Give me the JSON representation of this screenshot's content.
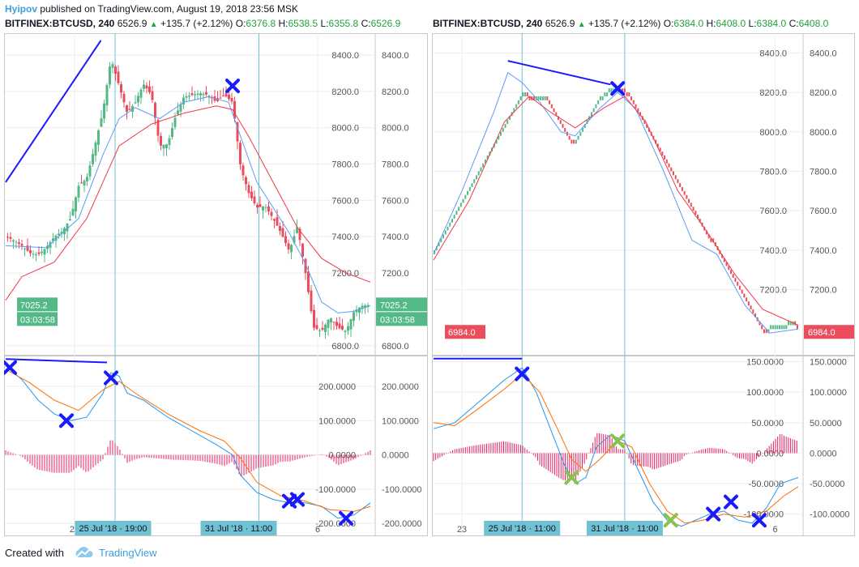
{
  "header": {
    "user": "Hyipov",
    "published": "published on TradingView.com, August 19, 2018 23:56 MSK"
  },
  "footer": {
    "created": "Created with",
    "brand": "TradingView"
  },
  "charts": [
    {
      "symbol": "BITFINEX:BTCUSD, 240",
      "last": "6526.9",
      "change": "+135.7 (+2.12%)",
      "o_label": "O:",
      "o": "6376.8",
      "h_label": "H:",
      "h": "6538.5",
      "l_label": "L:",
      "l": "6355.8",
      "c_label": "C:",
      "c": "6526.9",
      "price_ticks": [
        "8400.0",
        "8200.0",
        "8000.0",
        "7800.0",
        "7600.0",
        "7400.0",
        "7200.0",
        "6800.0"
      ],
      "price_tag": "7025.2",
      "time_tag": "03:03:58",
      "osc_ticks": [
        "200.0000",
        "100.0000",
        "0.0000",
        "-100.0000",
        "-200.0000"
      ],
      "x_labels": [
        "23",
        "6"
      ],
      "x_highlights": [
        "25 Jul '18 · 19:00",
        "31 Jul '18 · 11:00"
      ]
    },
    {
      "symbol": "BITFINEX:BTCUSD, 240",
      "last": "6526.9",
      "change": "+135.7 (+2.12%)",
      "o_label": "O:",
      "o": "6384.0",
      "h_label": "H:",
      "h": "6408.0",
      "l_label": "L:",
      "l": "6384.0",
      "c_label": "C:",
      "c": "6408.0",
      "price_ticks": [
        "8400.0",
        "8200.0",
        "8000.0",
        "7800.0",
        "7600.0",
        "7400.0",
        "7200.0"
      ],
      "price_tag": "6984.0",
      "osc_ticks": [
        "150.0000",
        "100.0000",
        "50.0000",
        "0.0000",
        "-50.0000",
        "-100.0000"
      ],
      "x_labels": [
        "23",
        "6"
      ],
      "x_highlights": [
        "25 Jul '18 · 11:00",
        "31 Jul '18 · 11:00"
      ]
    }
  ],
  "colors": {
    "up": "#53b987",
    "down": "#eb4d5c",
    "ma_fast": "#5b9cf6",
    "ma_slow": "#f23645",
    "macd": "#2196f3",
    "signal": "#ff6d00",
    "hist": "#e91e63",
    "trendline": "#1a1aff",
    "marker": "#1a1aff",
    "marker_alt": "#8bc34a",
    "tag_green": "#53b987",
    "tag_red": "#eb4d5c",
    "highlight": "#6fc1d3"
  },
  "chart_data": [
    {
      "type": "candlestick",
      "title": "BITFINEX:BTCUSD, 240",
      "ylim": [
        6750,
        8520
      ],
      "series": [
        {
          "name": "price",
          "points": [
            [
              0,
              7400
            ],
            [
              4,
              7380
            ],
            [
              8,
              7350
            ],
            [
              12,
              7310
            ],
            [
              16,
              7300
            ],
            [
              20,
              7340
            ],
            [
              24,
              7400
            ],
            [
              28,
              7430
            ],
            [
              32,
              7500
            ],
            [
              36,
              7680
            ],
            [
              40,
              7720
            ],
            [
              44,
              7900
            ],
            [
              48,
              8090
            ],
            [
              52,
              8380
            ],
            [
              56,
              8230
            ],
            [
              60,
              8080
            ],
            [
              64,
              8140
            ],
            [
              68,
              8240
            ],
            [
              72,
              8180
            ],
            [
              76,
              7900
            ],
            [
              80,
              7910
            ],
            [
              84,
              8070
            ],
            [
              88,
              8170
            ],
            [
              92,
              8180
            ],
            [
              96,
              8190
            ],
            [
              100,
              8180
            ],
            [
              104,
              8140
            ],
            [
              108,
              8180
            ],
            [
              112,
              8140
            ],
            [
              116,
              7780
            ],
            [
              120,
              7640
            ],
            [
              124,
              7560
            ],
            [
              128,
              7570
            ],
            [
              132,
              7500
            ],
            [
              136,
              7420
            ],
            [
              140,
              7320
            ],
            [
              144,
              7460
            ],
            [
              148,
              7200
            ],
            [
              152,
              6900
            ],
            [
              156,
              6880
            ],
            [
              160,
              6960
            ],
            [
              164,
              6900
            ],
            [
              168,
              6880
            ],
            [
              172,
              6990
            ],
            [
              176,
              7020
            ],
            [
              180,
              7025
            ]
          ]
        },
        {
          "name": "ma_fast",
          "points": [
            [
              0,
              7350
            ],
            [
              20,
              7340
            ],
            [
              36,
              7500
            ],
            [
              48,
              7850
            ],
            [
              56,
              8050
            ],
            [
              64,
              8110
            ],
            [
              76,
              8050
            ],
            [
              88,
              8140
            ],
            [
              100,
              8170
            ],
            [
              110,
              8140
            ],
            [
              116,
              7950
            ],
            [
              124,
              7700
            ],
            [
              132,
              7560
            ],
            [
              140,
              7420
            ],
            [
              148,
              7250
            ],
            [
              156,
              7040
            ],
            [
              164,
              6980
            ],
            [
              172,
              6990
            ],
            [
              180,
              7020
            ]
          ]
        },
        {
          "name": "ma_slow",
          "points": [
            [
              0,
              7050
            ],
            [
              8,
              7180
            ],
            [
              24,
              7260
            ],
            [
              40,
              7500
            ],
            [
              56,
              7900
            ],
            [
              72,
              8020
            ],
            [
              88,
              8080
            ],
            [
              104,
              8120
            ],
            [
              112,
              8100
            ],
            [
              120,
              7950
            ],
            [
              132,
              7700
            ],
            [
              144,
              7450
            ],
            [
              156,
              7280
            ],
            [
              168,
              7200
            ],
            [
              180,
              7150
            ]
          ]
        }
      ],
      "oscillator": {
        "ylim": [
          -235,
          290
        ],
        "macd": [
          [
            0,
            260
          ],
          [
            8,
            220
          ],
          [
            16,
            160
          ],
          [
            24,
            120
          ],
          [
            32,
            100
          ],
          [
            40,
            110
          ],
          [
            48,
            180
          ],
          [
            52,
            240
          ],
          [
            56,
            230
          ],
          [
            60,
            180
          ],
          [
            68,
            160
          ],
          [
            80,
            110
          ],
          [
            92,
            70
          ],
          [
            104,
            30
          ],
          [
            112,
            0
          ],
          [
            116,
            -60
          ],
          [
            124,
            -110
          ],
          [
            132,
            -130
          ],
          [
            140,
            -140
          ],
          [
            148,
            -140
          ],
          [
            156,
            -150
          ],
          [
            164,
            -185
          ],
          [
            172,
            -175
          ],
          [
            180,
            -140
          ]
        ],
        "signal": [
          [
            0,
            250
          ],
          [
            12,
            210
          ],
          [
            24,
            160
          ],
          [
            36,
            130
          ],
          [
            48,
            190
          ],
          [
            56,
            215
          ],
          [
            64,
            180
          ],
          [
            80,
            120
          ],
          [
            96,
            70
          ],
          [
            108,
            40
          ],
          [
            116,
            -10
          ],
          [
            124,
            -80
          ],
          [
            136,
            -120
          ],
          [
            148,
            -135
          ],
          [
            160,
            -160
          ],
          [
            172,
            -165
          ],
          [
            180,
            -150
          ]
        ],
        "markers": [
          [
            2,
            255
          ],
          [
            30,
            100
          ],
          [
            52,
            225
          ],
          [
            140,
            -135
          ],
          [
            144,
            -130
          ],
          [
            168,
            -185
          ]
        ]
      }
    },
    {
      "type": "renko",
      "title": "BITFINEX:BTCUSD, 240",
      "ylim": [
        6870,
        8500
      ],
      "series": [
        {
          "name": "price",
          "points": [
            [
              0,
              7400
            ],
            [
              6,
              7550
            ],
            [
              16,
              7800
            ],
            [
              24,
              8000
            ],
            [
              34,
              8200
            ],
            [
              42,
              8360
            ],
            [
              48,
              8300
            ],
            [
              54,
              8150
            ],
            [
              60,
              8200
            ],
            [
              64,
              8160
            ],
            [
              72,
              8000
            ],
            [
              78,
              7920
            ],
            [
              86,
              8050
            ],
            [
              94,
              8180
            ],
            [
              100,
              8230
            ],
            [
              106,
              8200
            ],
            [
              112,
              8150
            ],
            [
              120,
              7950
            ],
            [
              130,
              7700
            ],
            [
              138,
              7600
            ],
            [
              146,
              7400
            ],
            [
              152,
              7320
            ],
            [
              158,
              7440
            ],
            [
              164,
              7340
            ],
            [
              172,
              7150
            ],
            [
              180,
              6940
            ],
            [
              186,
              6920
            ],
            [
              190,
              7040
            ],
            [
              196,
              7000
            ],
            [
              202,
              7060
            ],
            [
              206,
              6984
            ]
          ]
        },
        {
          "name": "ma_fast",
          "points": [
            [
              0,
              7380
            ],
            [
              16,
              7700
            ],
            [
              34,
              8100
            ],
            [
              42,
              8300
            ],
            [
              50,
              8250
            ],
            [
              60,
              8150
            ],
            [
              72,
              8000
            ],
            [
              80,
              7980
            ],
            [
              94,
              8120
            ],
            [
              104,
              8200
            ],
            [
              114,
              8120
            ],
            [
              130,
              7800
            ],
            [
              146,
              7450
            ],
            [
              160,
              7380
            ],
            [
              176,
              7120
            ],
            [
              190,
              6980
            ],
            [
              206,
              7000
            ]
          ]
        },
        {
          "name": "ma_slow",
          "points": [
            [
              0,
              7350
            ],
            [
              20,
              7650
            ],
            [
              40,
              8050
            ],
            [
              54,
              8180
            ],
            [
              66,
              8100
            ],
            [
              80,
              8020
            ],
            [
              96,
              8120
            ],
            [
              108,
              8180
            ],
            [
              120,
              8050
            ],
            [
              138,
              7700
            ],
            [
              154,
              7500
            ],
            [
              170,
              7280
            ],
            [
              186,
              7100
            ],
            [
              206,
              7020
            ]
          ]
        }
      ],
      "oscillator": {
        "ylim": [
          -135,
          160
        ],
        "macd": [
          [
            0,
            40
          ],
          [
            12,
            50
          ],
          [
            24,
            80
          ],
          [
            40,
            120
          ],
          [
            50,
            140
          ],
          [
            58,
            100
          ],
          [
            66,
            40
          ],
          [
            74,
            -20
          ],
          [
            80,
            -50
          ],
          [
            86,
            -40
          ],
          [
            92,
            10
          ],
          [
            100,
            30
          ],
          [
            108,
            20
          ],
          [
            116,
            -30
          ],
          [
            124,
            -80
          ],
          [
            132,
            -110
          ],
          [
            140,
            -120
          ],
          [
            148,
            -110
          ],
          [
            156,
            -100
          ],
          [
            164,
            -95
          ],
          [
            172,
            -110
          ],
          [
            180,
            -115
          ],
          [
            188,
            -90
          ],
          [
            196,
            -50
          ],
          [
            206,
            -40
          ]
        ],
        "signal": [
          [
            0,
            50
          ],
          [
            12,
            45
          ],
          [
            24,
            70
          ],
          [
            40,
            105
          ],
          [
            50,
            130
          ],
          [
            60,
            100
          ],
          [
            70,
            40
          ],
          [
            78,
            -10
          ],
          [
            86,
            -30
          ],
          [
            94,
            -10
          ],
          [
            104,
            20
          ],
          [
            112,
            10
          ],
          [
            122,
            -50
          ],
          [
            132,
            -95
          ],
          [
            142,
            -115
          ],
          [
            152,
            -110
          ],
          [
            164,
            -100
          ],
          [
            176,
            -105
          ],
          [
            188,
            -95
          ],
          [
            198,
            -70
          ],
          [
            206,
            -55
          ]
        ],
        "markers": [
          [
            50,
            130
          ],
          [
            158,
            -100
          ],
          [
            168,
            -80
          ],
          [
            184,
            -110
          ]
        ],
        "markers_alt": [
          [
            78,
            -40
          ],
          [
            104,
            20
          ],
          [
            134,
            -110
          ]
        ]
      }
    }
  ]
}
